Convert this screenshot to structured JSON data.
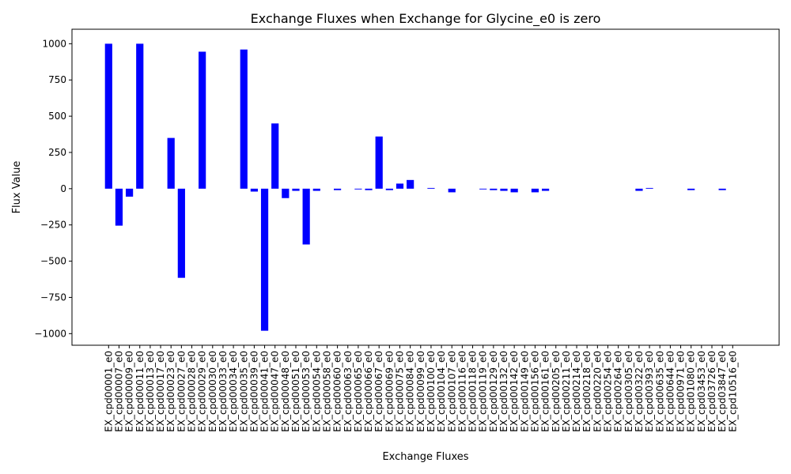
{
  "chart_data": {
    "type": "bar",
    "title": "Exchange Fluxes when Exchange for Glycine_e0 is zero",
    "xlabel": "Exchange Fluxes",
    "ylabel": "Flux Value",
    "ylim": [
      -1080,
      1100
    ],
    "yticks": [
      -1000,
      -750,
      -500,
      -250,
      0,
      250,
      500,
      750,
      1000
    ],
    "ytick_labels": [
      "−1000",
      "−750",
      "−500",
      "−250",
      "0",
      "250",
      "500",
      "750",
      "1000"
    ],
    "bar_color": "#0000ff",
    "grid": false,
    "categories": [
      "EX_cpd00001_e0",
      "EX_cpd00007_e0",
      "EX_cpd00009_e0",
      "EX_cpd00011_e0",
      "EX_cpd00013_e0",
      "EX_cpd00017_e0",
      "EX_cpd00023_e0",
      "EX_cpd00027_e0",
      "EX_cpd00028_e0",
      "EX_cpd00029_e0",
      "EX_cpd00030_e0",
      "EX_cpd00033_e0",
      "EX_cpd00034_e0",
      "EX_cpd00035_e0",
      "EX_cpd00039_e0",
      "EX_cpd00041_e0",
      "EX_cpd00047_e0",
      "EX_cpd00048_e0",
      "EX_cpd00051_e0",
      "EX_cpd00053_e0",
      "EX_cpd00054_e0",
      "EX_cpd00058_e0",
      "EX_cpd00060_e0",
      "EX_cpd00063_e0",
      "EX_cpd00065_e0",
      "EX_cpd00066_e0",
      "EX_cpd00067_e0",
      "EX_cpd00069_e0",
      "EX_cpd00075_e0",
      "EX_cpd00084_e0",
      "EX_cpd00099_e0",
      "EX_cpd00100_e0",
      "EX_cpd00104_e0",
      "EX_cpd00107_e0",
      "EX_cpd00116_e0",
      "EX_cpd00118_e0",
      "EX_cpd00119_e0",
      "EX_cpd00129_e0",
      "EX_cpd00132_e0",
      "EX_cpd00142_e0",
      "EX_cpd00149_e0",
      "EX_cpd00156_e0",
      "EX_cpd00161_e0",
      "EX_cpd00205_e0",
      "EX_cpd00211_e0",
      "EX_cpd00214_e0",
      "EX_cpd00218_e0",
      "EX_cpd00220_e0",
      "EX_cpd00254_e0",
      "EX_cpd00264_e0",
      "EX_cpd00305_e0",
      "EX_cpd00322_e0",
      "EX_cpd00393_e0",
      "EX_cpd00635_e0",
      "EX_cpd00644_e0",
      "EX_cpd00971_e0",
      "EX_cpd01080_e0",
      "EX_cpd03453_e0",
      "EX_cpd03726_e0",
      "EX_cpd03847_e0",
      "EX_cpd10516_e0"
    ],
    "values": [
      1000,
      -255,
      -55,
      1000,
      0,
      0,
      350,
      -615,
      0,
      945,
      0,
      0,
      0,
      960,
      -20,
      -980,
      450,
      -65,
      -15,
      -385,
      -15,
      0,
      -10,
      0,
      -5,
      -10,
      360,
      -10,
      35,
      60,
      0,
      5,
      0,
      -25,
      0,
      0,
      -5,
      -10,
      -15,
      -25,
      0,
      -25,
      -15,
      0,
      0,
      0,
      0,
      0,
      0,
      0,
      0,
      -15,
      5,
      0,
      0,
      0,
      -10,
      0,
      0,
      -10,
      0
    ]
  }
}
